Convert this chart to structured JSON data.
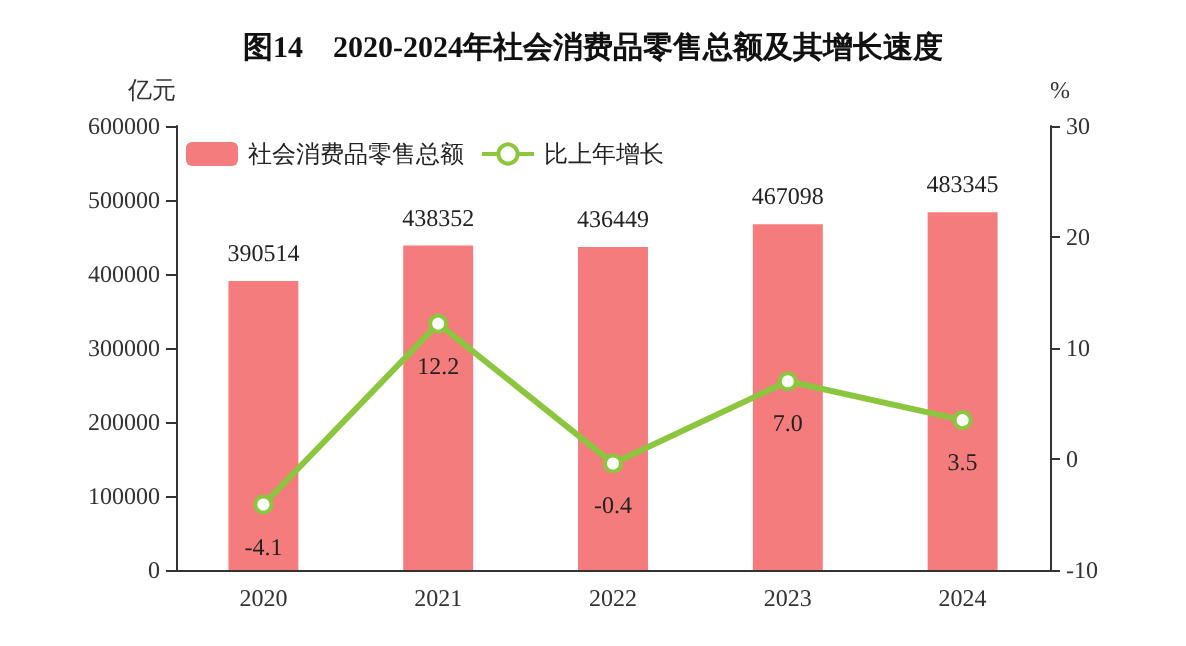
{
  "chart_data": {
    "type": "bar",
    "title": "图14　2020-2024年社会消费品零售总额及其增长速度",
    "ylabel": "亿元",
    "y2label": "%",
    "categories": [
      "2020",
      "2021",
      "2022",
      "2023",
      "2024"
    ],
    "series": [
      {
        "name": "社会消费品零售总额",
        "color": "#f47c7c",
        "values": [
          390514,
          438352,
          436449,
          467098,
          483345
        ],
        "value_labels": [
          "390514",
          "438352",
          "436449",
          "467098",
          "483345"
        ]
      },
      {
        "name": "比上年增长",
        "type": "line",
        "axis": "y2",
        "color": "#8cc63f",
        "marker": "circle",
        "values": [
          -4.1,
          12.2,
          -0.4,
          7.0,
          3.5
        ],
        "value_labels": [
          "-4.1",
          "12.2",
          "-0.4",
          "7.0",
          "3.5"
        ]
      }
    ],
    "ylim": [
      0,
      600000
    ],
    "yticks": [
      0,
      100000,
      200000,
      300000,
      400000,
      500000,
      600000
    ],
    "y2lim": [
      -10,
      30
    ],
    "y2ticks": [
      -10,
      0,
      10,
      20,
      30
    ],
    "grid": false,
    "legend": "top left"
  }
}
